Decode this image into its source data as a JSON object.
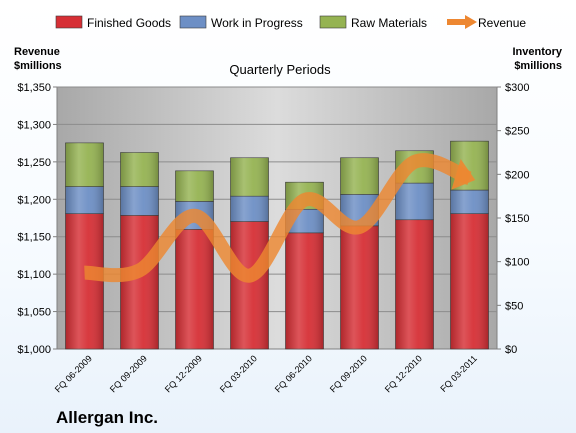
{
  "chart_data": {
    "type": "bar",
    "stacked": true,
    "title": "Quarterly Periods",
    "footer_label": "Allergan Inc.",
    "categories": [
      "FQ 06-2009",
      "FQ 09-2009",
      "FQ 12-2009",
      "FQ 03-2010",
      "FQ 06-2010",
      "FQ 09-2010",
      "FQ 12-2010",
      "FQ 03-2011"
    ],
    "left_axis": {
      "title_lines": [
        "Revenue",
        "$millions"
      ],
      "range": [
        1000,
        1350
      ],
      "ticks": [
        1000,
        1050,
        1100,
        1150,
        1200,
        1250,
        1300,
        1350
      ],
      "tick_labels": [
        "$1,000",
        "$1,050",
        "$1,100",
        "$1,150",
        "$1,200",
        "$1,250",
        "$1,300",
        "$1,350"
      ]
    },
    "right_axis": {
      "title_lines": [
        "Inventory",
        "$millions"
      ],
      "range": [
        0,
        300
      ],
      "ticks": [
        0,
        50,
        100,
        150,
        200,
        250,
        300
      ],
      "tick_labels": [
        "$0",
        "$50",
        "$100",
        "$150",
        "$200",
        "$250",
        "$300"
      ]
    },
    "grid": true,
    "legend_position": "top",
    "series": [
      {
        "name": "Finished Goods",
        "kind": "bar",
        "axis": "right",
        "color": "#d62f35",
        "values": [
          155,
          153,
          137,
          146,
          133,
          141,
          148,
          155
        ]
      },
      {
        "name": "Work in Progress",
        "kind": "bar",
        "axis": "right",
        "color": "#6d8fc5",
        "values": [
          31,
          33,
          32,
          29,
          27,
          36,
          42,
          27
        ]
      },
      {
        "name": "Raw Materials",
        "kind": "bar",
        "axis": "right",
        "color": "#95b352",
        "values": [
          50,
          39,
          35,
          44,
          31,
          42,
          37,
          56
        ]
      },
      {
        "name": "Revenue",
        "kind": "line",
        "axis": "left",
        "color": "#ed8731",
        "values": [
          1102,
          1105,
          1178,
          1098,
          1199,
          1163,
          1250,
          1228
        ]
      }
    ]
  }
}
